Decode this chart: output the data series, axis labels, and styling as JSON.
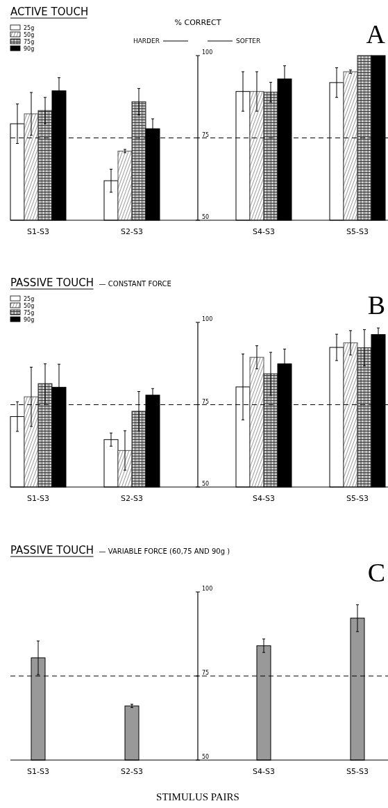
{
  "chart_data": [
    {
      "type": "bar",
      "title": "ACTIVE TOUCH",
      "ylabel": "% CORRECT",
      "annotations": [
        "HARDER",
        "SOFTER",
        "A"
      ],
      "categories": [
        "S1-S3",
        "S2-S3",
        "S4-S3",
        "S5-S3"
      ],
      "series": [
        {
          "name": "25g",
          "color": "#ffffff",
          "values": [
            79.3,
            62.0,
            89.1,
            91.8
          ],
          "errors": [
            6,
            3.5,
            6,
            4.5
          ]
        },
        {
          "name": "50g",
          "color": "#555555",
          "values": [
            82.3,
            71.0,
            89.1,
            95.1
          ],
          "errors": [
            6.5,
            0.5,
            6,
            0.5
          ]
        },
        {
          "name": "75g",
          "color": "#333333",
          "values": [
            83.3,
            86.0,
            88.9,
            100
          ],
          "errors": [
            4,
            4,
            3,
            null
          ]
        },
        {
          "name": "90g",
          "color": "#000000",
          "values": [
            89.3,
            77.8,
            92.9,
            100
          ],
          "errors": [
            4,
            3,
            4,
            null
          ]
        }
      ],
      "ylim": [
        50,
        100
      ],
      "yticks": [
        50,
        75,
        100
      ],
      "ref_lines": [
        {
          "axis": "y",
          "value": 75,
          "line_style": "dashed"
        }
      ],
      "legend": "top left",
      "grid": false
    },
    {
      "type": "bar",
      "title": "PASSIVE TOUCH",
      "subtitle": "— CONSTANT FORCE",
      "annotations": [
        "B"
      ],
      "categories": [
        "S1-S3",
        "S2-S3",
        "S4-S3",
        "S5-S3"
      ],
      "series": [
        {
          "name": "25g",
          "color": "#ffffff",
          "values": [
            71.4,
            64.4,
            80.4,
            92.4
          ],
          "errors": [
            4.5,
            2,
            10,
            4
          ]
        },
        {
          "name": "50g",
          "color": "#555555",
          "values": [
            77.4,
            61.1,
            89.4,
            93.8
          ],
          "errors": [
            9,
            6,
            3.5,
            3.7
          ]
        },
        {
          "name": "75g",
          "color": "#333333",
          "values": [
            81.4,
            73.0,
            84.4,
            92.3
          ],
          "errors": [
            6,
            6,
            6.5,
            5.5
          ]
        },
        {
          "name": "90g",
          "color": "#000000",
          "values": [
            80.3,
            77.9,
            87.4,
            96.3
          ],
          "errors": [
            7,
            2,
            4.5,
            2
          ]
        }
      ],
      "ylim": [
        50,
        100
      ],
      "yticks": [
        50,
        75,
        100
      ],
      "ref_lines": [
        {
          "axis": "y",
          "value": 75,
          "line_style": "dashed"
        }
      ],
      "legend": "top left",
      "grid": false
    },
    {
      "type": "bar",
      "title": "PASSIVE TOUCH",
      "subtitle": "— VARIABLE FORCE (60,75 AND 90g )",
      "xlabel": "STIMULUS PAIRS",
      "annotations": [
        "C"
      ],
      "categories": [
        "S1-S3",
        "S2-S3",
        "S4-S3",
        "S5-S3"
      ],
      "series": [
        {
          "color": "#999999",
          "values": [
            80.4,
            66.1,
            84.0,
            92.2
          ],
          "errors": [
            5,
            0.5,
            2,
            4
          ]
        }
      ],
      "ylim": [
        50,
        100
      ],
      "yticks": [
        50,
        75,
        100
      ],
      "ref_lines": [
        {
          "axis": "y",
          "value": 75,
          "line_style": "dashed"
        }
      ],
      "grid": false
    }
  ]
}
